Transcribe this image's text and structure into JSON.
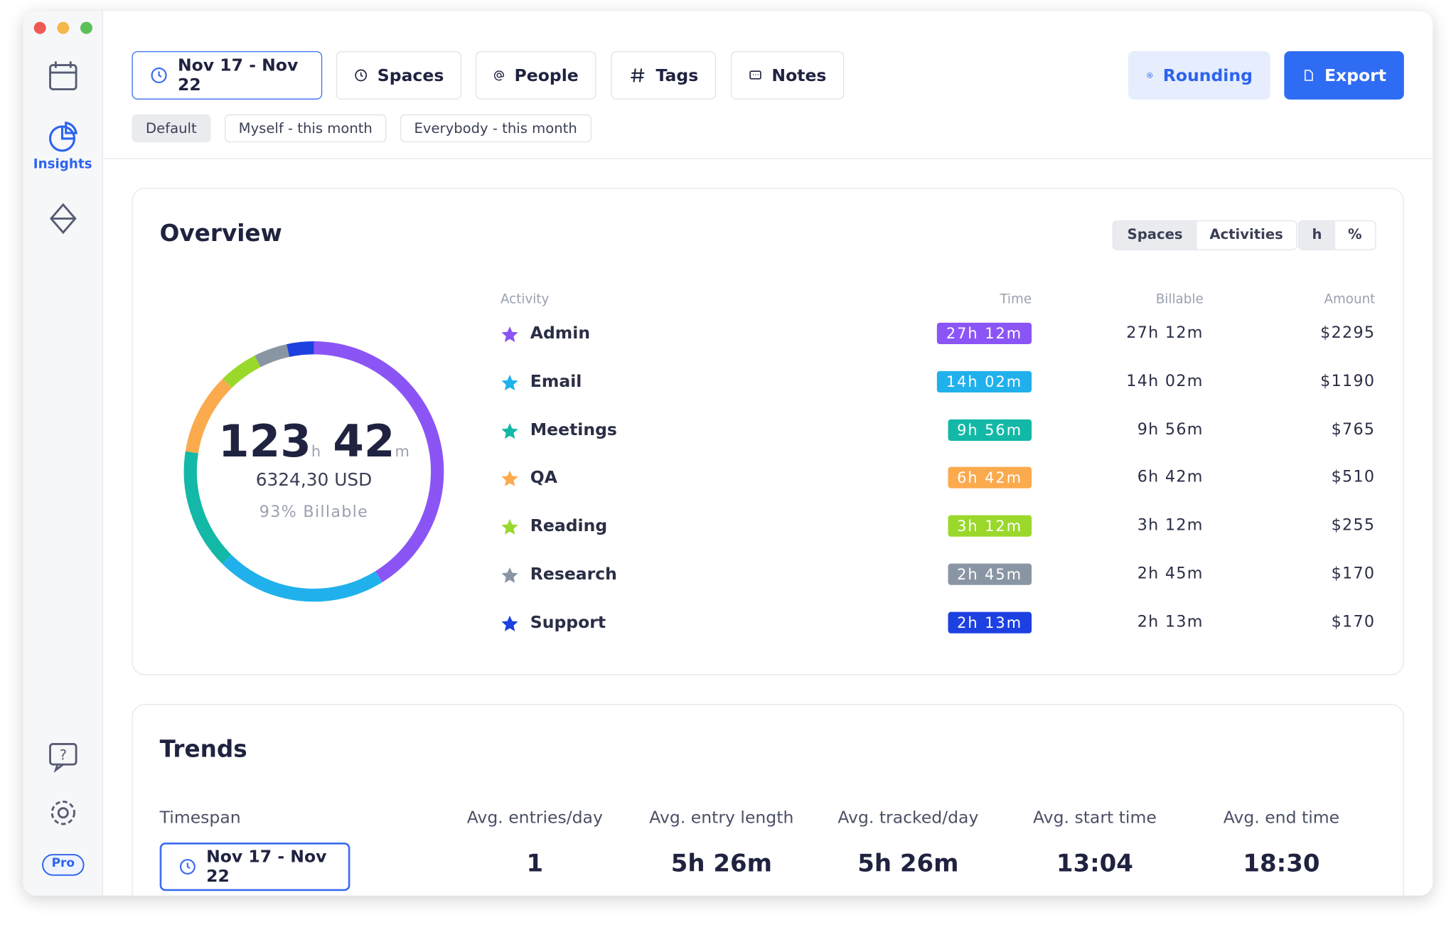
{
  "sidebar": {
    "active_label": "Insights",
    "badge": "Pro"
  },
  "toolbar": {
    "filters": [
      "Nov 17 - Nov 22",
      "Spaces",
      "People",
      "Tags",
      "Notes"
    ],
    "rounding": "Rounding",
    "export": "Export",
    "presets": [
      "Default",
      "Myself - this month",
      "Everybody - this month"
    ]
  },
  "overview": {
    "title": "Overview",
    "group_toggle": [
      "Spaces",
      "Activities"
    ],
    "unit_toggle": [
      "h",
      "%"
    ],
    "total_hours": "123",
    "hours_unit": "h",
    "total_minutes": "42",
    "minutes_unit": "m",
    "amount": "6324,30 USD",
    "billable": "93% Billable",
    "columns": [
      "Activity",
      "Time",
      "Billable",
      "Amount"
    ],
    "rows": [
      {
        "name": "Admin",
        "color": "#8b55f6",
        "time": "27h 12m",
        "billable": "27h 12m",
        "amount": "$2295"
      },
      {
        "name": "Email",
        "color": "#20b1ec",
        "time": "14h 02m",
        "billable": "14h 02m",
        "amount": "$1190"
      },
      {
        "name": "Meetings",
        "color": "#13b8a6",
        "time": "9h 56m",
        "billable": "9h 56m",
        "amount": "$765"
      },
      {
        "name": "QA",
        "color": "#fbaa4e",
        "time": "6h 42m",
        "billable": "6h 42m",
        "amount": "$510"
      },
      {
        "name": "Reading",
        "color": "#9ad82b",
        "time": "3h 12m",
        "billable": "3h 12m",
        "amount": "$255"
      },
      {
        "name": "Research",
        "color": "#8a95a4",
        "time": "2h 45m",
        "billable": "2h 45m",
        "amount": "$170"
      },
      {
        "name": "Support",
        "color": "#1d40e0",
        "time": "2h 13m",
        "billable": "2h 13m",
        "amount": "$170"
      }
    ]
  },
  "trends": {
    "title": "Trends",
    "timespan_label": "Timespan",
    "timespan": "Nov 17 - Nov 22",
    "columns": [
      "Avg. entries/day",
      "Avg. entry length",
      "Avg. tracked/day",
      "Avg. start time",
      "Avg. end time"
    ],
    "values": [
      "1",
      "5h 26m",
      "5h 26m",
      "13:04",
      "18:30"
    ]
  }
}
